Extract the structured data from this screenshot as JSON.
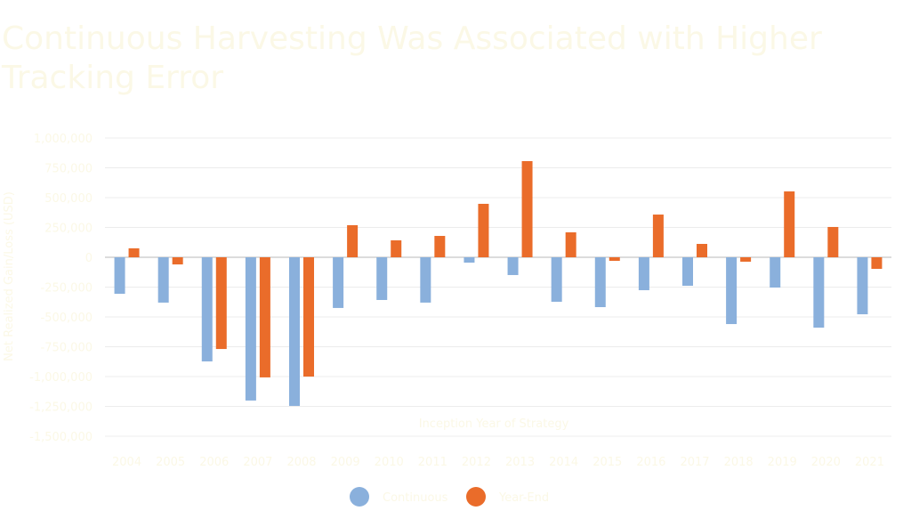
{
  "chart_data": {
    "type": "bar",
    "title": "Continuous Harvesting Was Associated with Higher Tracking Error",
    "xlabel": "Inception Year of Strategy",
    "ylabel": "Net Realized Gain/Loss (USD)",
    "ylim": [
      -1500000,
      1000000
    ],
    "yticks": [
      1000000,
      750000,
      500000,
      250000,
      0,
      -250000,
      -500000,
      -750000,
      -1000000,
      -1250000,
      -1500000
    ],
    "ytick_labels": [
      "1,000,000",
      "750,000",
      "500,000",
      "250,000",
      "0",
      "-250,000",
      "-500,000",
      "-750,000",
      "-1,000,000",
      "-1,250,000",
      "-1,500,000"
    ],
    "grid": true,
    "legend_placement": "bottom",
    "categories": [
      "2004",
      "2005",
      "2006",
      "2007",
      "2008",
      "2009",
      "2010",
      "2011",
      "2012",
      "2013",
      "2014",
      "2015",
      "2016",
      "2017",
      "2018",
      "2019",
      "2020",
      "2021"
    ],
    "series": [
      {
        "name": "Continuous",
        "color": "#8ab0dc",
        "values": [
          -306000,
          -380000,
          -873000,
          -1201000,
          -1246000,
          -425000,
          -358000,
          -380000,
          -45000,
          -149000,
          -373000,
          -418000,
          -276000,
          -239000,
          -560000,
          -254000,
          -590000,
          -478000
        ]
      },
      {
        "name": "Year-End",
        "color": "#ea6c2a",
        "values": [
          75000,
          -60000,
          -769000,
          -1007000,
          -1000000,
          269000,
          142000,
          179000,
          448000,
          806000,
          209000,
          -30000,
          358000,
          112000,
          -37000,
          552000,
          254000,
          -97000
        ]
      }
    ]
  }
}
